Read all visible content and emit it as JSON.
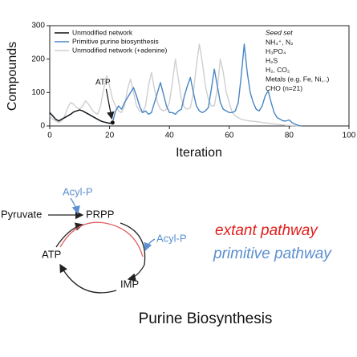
{
  "chart_data": {
    "type": "line",
    "xlabel": "Iteration",
    "ylabel": "Compounds",
    "xlim": [
      0,
      100
    ],
    "xticks": [
      0,
      20,
      40,
      60,
      80,
      100
    ],
    "ylim": [
      0,
      300
    ],
    "yticks": [
      0,
      100,
      200,
      300
    ],
    "legend": "upper left",
    "x": [
      0,
      1,
      2,
      3,
      4,
      5,
      6,
      7,
      8,
      9,
      10,
      11,
      12,
      13,
      14,
      15,
      16,
      17,
      18,
      19,
      20,
      21,
      22,
      23,
      24,
      25,
      26,
      27,
      28,
      29,
      30,
      31,
      32,
      33,
      34,
      35,
      36,
      37,
      38,
      39,
      40,
      41,
      42,
      43,
      44,
      45,
      46,
      47,
      48,
      49,
      50,
      51,
      52,
      53,
      54,
      55,
      56,
      57,
      58,
      59,
      60,
      61,
      62,
      63,
      64,
      65,
      66,
      67,
      68,
      69,
      70,
      71,
      72,
      73,
      74,
      75,
      76,
      77,
      78,
      79,
      80,
      81,
      82,
      83,
      84
    ],
    "series": [
      {
        "name": "Unmodified network (+adenine)",
        "color": "#cfcfcf",
        "values": [
          30,
          20,
          15,
          10,
          15,
          30,
          55,
          70,
          65,
          55,
          50,
          60,
          75,
          65,
          50,
          40,
          35,
          60,
          110,
          150,
          120,
          80,
          60,
          45,
          40,
          60,
          110,
          140,
          100,
          60,
          45,
          40,
          60,
          120,
          160,
          110,
          70,
          50,
          45,
          50,
          70,
          130,
          200,
          140,
          80,
          55,
          50,
          55,
          100,
          180,
          245,
          190,
          120,
          80,
          60,
          60,
          110,
          200,
          160,
          100,
          70,
          40,
          30,
          25,
          20,
          18,
          16,
          15,
          14,
          13,
          12,
          10,
          9,
          8,
          7,
          6,
          5,
          4,
          3,
          2,
          2,
          1,
          1,
          0,
          0
        ]
      },
      {
        "name": "Primitive purine biosynthesis",
        "color": "#4a86c5",
        "values": [
          40,
          30,
          20,
          15,
          20,
          25,
          30,
          35,
          42,
          45,
          48,
          45,
          40,
          35,
          30,
          25,
          20,
          15,
          12,
          10,
          8,
          10,
          45,
          60,
          50,
          70,
          85,
          100,
          115,
          90,
          60,
          40,
          45,
          35,
          40,
          70,
          100,
          130,
          95,
          60,
          40,
          40,
          35,
          45,
          50,
          90,
          120,
          145,
          100,
          60,
          45,
          40,
          45,
          55,
          110,
          170,
          120,
          70,
          50,
          45,
          40,
          40,
          45,
          70,
          150,
          245,
          160,
          100,
          70,
          50,
          45,
          60,
          90,
          105,
          70,
          40,
          25,
          20,
          15,
          15,
          18,
          10,
          5,
          2,
          0
        ]
      },
      {
        "name": "Unmodified network",
        "color": "#111111",
        "values": [
          40,
          30,
          20,
          15,
          20,
          25,
          30,
          35,
          42,
          45,
          48,
          45,
          40,
          35,
          30,
          25,
          20,
          15,
          12,
          10,
          8,
          10,
          null,
          null,
          null,
          null,
          null,
          null,
          null,
          null,
          null,
          null,
          null,
          null,
          null,
          null,
          null,
          null,
          null,
          null,
          null,
          null,
          null,
          null,
          null,
          null,
          null,
          null,
          null,
          null,
          null,
          null,
          null,
          null,
          null,
          null,
          null,
          null,
          null,
          null,
          null,
          null,
          null,
          null,
          null,
          null,
          null,
          null,
          null,
          null,
          null,
          null,
          null,
          null,
          null,
          null,
          null,
          null,
          null,
          null,
          null,
          null,
          null,
          null,
          null
        ]
      }
    ],
    "annotation": {
      "text": "ATP",
      "x": 21,
      "y": 10
    },
    "seed_set": {
      "title": "Seed set",
      "items": [
        "NH₄⁺, N₂",
        "H₃PO₄",
        "H₂S",
        "H₂, CO₂",
        "Metals (e.g. Fe, Ni,..)",
        "CHO (n=21)"
      ]
    }
  },
  "diagram": {
    "labels": {
      "acyl_p_top": "Acyl-P",
      "pyruvate": "Pyruvate",
      "prpp": "PRPP",
      "acyl_p_right": "Acyl-P",
      "atp": "ATP",
      "imp": "IMP"
    },
    "legend": {
      "extant": "extant pathway",
      "primitive": "primitive pathway"
    },
    "title": "Purine Biosynthesis"
  }
}
